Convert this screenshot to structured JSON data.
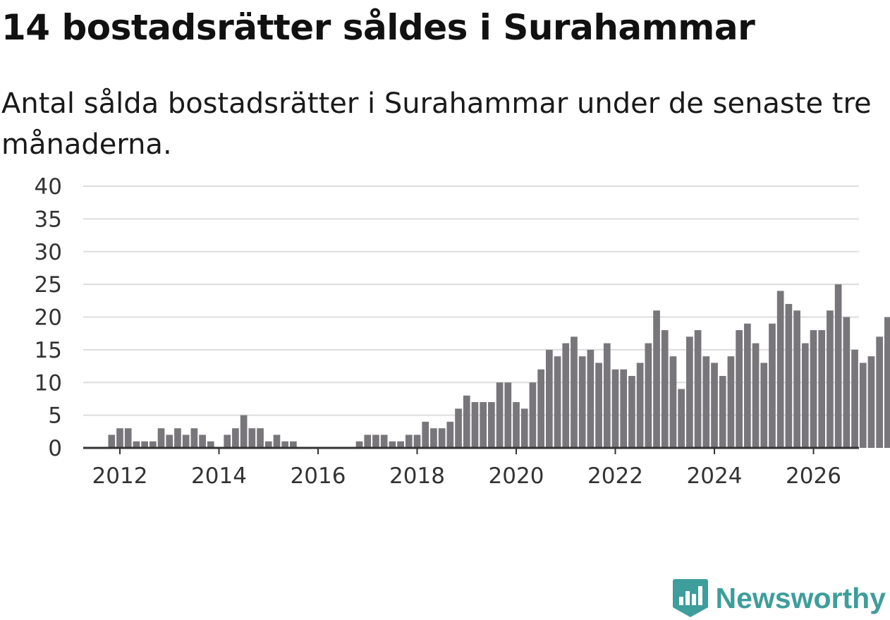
{
  "title": "14 bostadsrätter såldes i Surahammar",
  "subtitle": "Antal sålda bostadsrätter i Surahammar under de senaste tre månaderna.",
  "brand": {
    "name": "Newsworthy",
    "logo_icon": "bar-chart-badge-icon"
  },
  "colors": {
    "bar": "#78767a",
    "highlight": "#1f9e98",
    "grid": "#dddddd",
    "axis": "#333333",
    "brand": "#3d9e9b"
  },
  "chart_data": {
    "type": "bar",
    "title": "14 bostadsrätter såldes i Surahammar",
    "xlabel": "",
    "ylabel": "",
    "ylim": [
      0,
      40
    ],
    "yticks": [
      0,
      5,
      10,
      15,
      20,
      25,
      30,
      35,
      40
    ],
    "xticks": [
      "2012",
      "2014",
      "2016",
      "2018",
      "2020",
      "2022",
      "2024",
      "2026"
    ],
    "start": "2011-03",
    "frequency": "monthly",
    "values": [
      0,
      0,
      0,
      0,
      0,
      0,
      0,
      0,
      0,
      2,
      3,
      3,
      1,
      1,
      1,
      3,
      2,
      3,
      2,
      3,
      2,
      1,
      0,
      2,
      3,
      5,
      3,
      3,
      1,
      2,
      1,
      1,
      0,
      0,
      0,
      0,
      0,
      0,
      0,
      1,
      2,
      2,
      2,
      1,
      1,
      2,
      2,
      4,
      3,
      3,
      4,
      6,
      8,
      7,
      7,
      7,
      10,
      10,
      7,
      6,
      10,
      12,
      15,
      14,
      16,
      17,
      14,
      15,
      13,
      16,
      12,
      12,
      11,
      13,
      16,
      21,
      18,
      14,
      9,
      17,
      18,
      14,
      13,
      11,
      14,
      18,
      19,
      16,
      13,
      19,
      24,
      22,
      21,
      16,
      18,
      18,
      21,
      25,
      20,
      15,
      13,
      14,
      17,
      20,
      21,
      19,
      13,
      16,
      16,
      19,
      13,
      12,
      15,
      15,
      17,
      11,
      11,
      12,
      15,
      17,
      19,
      18,
      17,
      19,
      25,
      32,
      27,
      20,
      20,
      24,
      24,
      22,
      19,
      20,
      24,
      20,
      19,
      13,
      13,
      17,
      22,
      23,
      17,
      13,
      12,
      15,
      13,
      16,
      14,
      14,
      15,
      14,
      15,
      8,
      5,
      6,
      12,
      16,
      18,
      15,
      14,
      17,
      15,
      19,
      16,
      17,
      14,
      11,
      15,
      19,
      23,
      24,
      23,
      25,
      20,
      20,
      17,
      16,
      14,
      13,
      13,
      14
    ],
    "highlight_last": true,
    "annotation": {
      "label": "14",
      "value": 14
    }
  }
}
